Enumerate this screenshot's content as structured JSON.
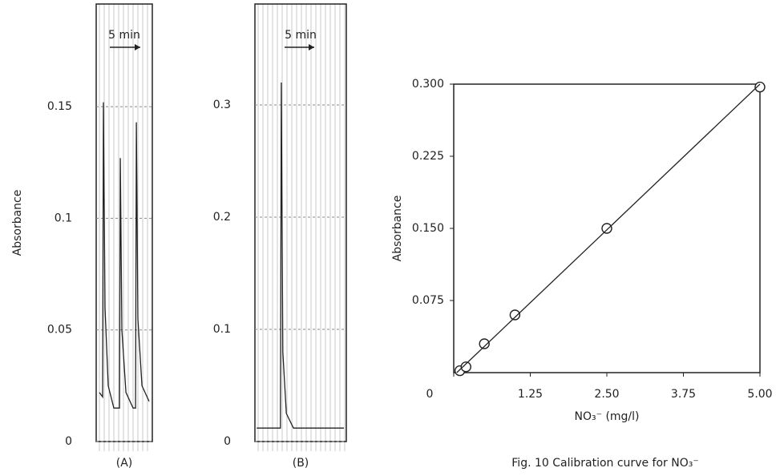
{
  "chart_data": [
    {
      "type": "line",
      "ylabel": "Absorbance",
      "xlabel": "(A)",
      "annotation": "5 min",
      "color": "#222222",
      "x": [
        0.53,
        1.05,
        1.18,
        1.45,
        1.97,
        2.89,
        3.82,
        3.95,
        4.21,
        4.87,
        6.05,
        6.45,
        6.58,
        6.84,
        7.5,
        8.68
      ],
      "values": [
        0.022,
        0.02,
        0.152,
        0.06,
        0.025,
        0.015,
        0.015,
        0.127,
        0.05,
        0.022,
        0.015,
        0.015,
        0.143,
        0.055,
        0.025,
        0.018
      ],
      "xlim": [
        0,
        9.2
      ],
      "ylim": [
        0,
        0.196
      ],
      "yticks": [
        0,
        0.05,
        0.1,
        0.15
      ]
    },
    {
      "type": "line",
      "xlabel": "(B)",
      "annotation": "5 min",
      "color": "#222222",
      "x": [
        0.3,
        4.3,
        4.45,
        4.7,
        5.3,
        6.5,
        15.0
      ],
      "values": [
        0.012,
        0.012,
        0.32,
        0.08,
        0.025,
        0.012,
        0.012
      ],
      "xlim": [
        0,
        15.4
      ],
      "ylim": [
        0,
        0.39
      ],
      "yticks": [
        0,
        0.1,
        0.2,
        0.3
      ]
    },
    {
      "type": "scatter",
      "ylabel": "Absorbance",
      "xlabel": "NO₃⁻ (mg/l)",
      "caption": "Fig. 10 Calibration curve for NO₃⁻",
      "color": "#222222",
      "series": [
        {
          "marker": "circle",
          "x": [
            0.1,
            0.2,
            0.5,
            1.0,
            2.5,
            5.0
          ],
          "values": [
            0.002,
            0.006,
            0.03,
            0.06,
            0.15,
            0.297
          ]
        },
        {
          "marker": "none",
          "x": [
            0.05,
            5.0
          ],
          "values": [
            0,
            0.3
          ]
        }
      ],
      "xlim": [
        0,
        5
      ],
      "ylim": [
        0,
        0.3
      ],
      "xticks": [
        0,
        1.25,
        {
          "value": 2.5,
          "label": "2.50"
        },
        3.75,
        {
          "value": 5,
          "label": "5.00"
        }
      ],
      "yticks": [
        0.075,
        {
          "value": 0.15,
          "label": "0.150"
        },
        0.225,
        {
          "value": 0.3,
          "label": "0.300"
        }
      ]
    }
  ]
}
